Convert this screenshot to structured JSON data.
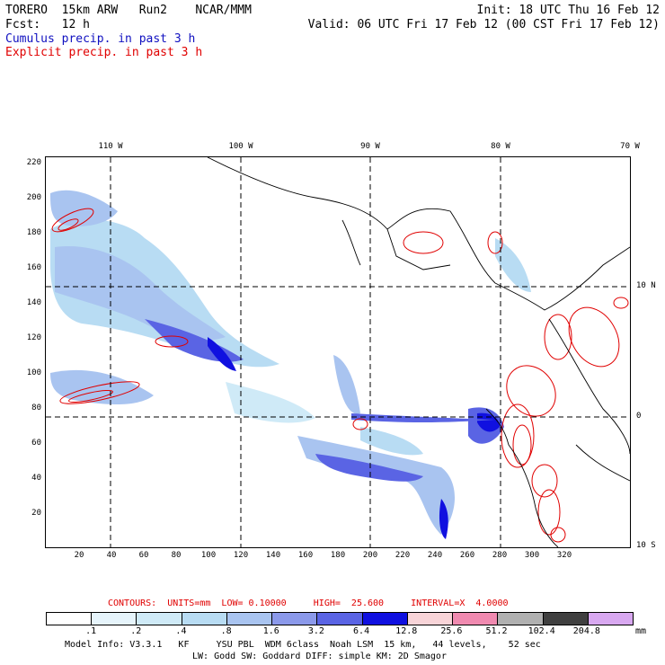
{
  "header": {
    "line1_left": "TORERO  15km ARW   Run2    NCAR/MMM",
    "line1_right": "Init: 18 UTC Thu 16 Feb 12",
    "line2_left": "Fcst:   12 h",
    "line2_right": "Valid: 06 UTC Fri 17 Feb 12 (00 CST Fri 17 Feb 12)",
    "legend_cumulus": "Cumulus precip. in past 3 h",
    "legend_explicit": "Explicit precip. in past 3 h"
  },
  "axes": {
    "top_lon_labels": [
      "110 W",
      "100 W",
      "90 W",
      "80 W",
      "70 W"
    ],
    "right_lat_labels": [
      "10 N",
      "0",
      "10 S"
    ],
    "left_y_ticks": [
      "220",
      "200",
      "180",
      "160",
      "140",
      "120",
      "100",
      "80",
      "60",
      "40",
      "20"
    ],
    "bottom_x_ticks": [
      "20",
      "40",
      "60",
      "80",
      "100",
      "120",
      "140",
      "160",
      "180",
      "200",
      "220",
      "240",
      "260",
      "280",
      "300",
      "320"
    ]
  },
  "contours": {
    "label": "CONTOURS:  UNITS=mm  LOW= 0.10000     HIGH=  25.600     INTERVAL=X  4.0000"
  },
  "colorbar": {
    "labels": [
      ".1",
      ".2",
      ".4",
      ".8",
      "1.6",
      "3.2",
      "6.4",
      "12.8",
      "25.6",
      "51.2",
      "102.4",
      "204.8"
    ],
    "units": "mm",
    "colors": [
      "#ffffff",
      "#e6f4fb",
      "#cfeaf7",
      "#b8dcf3",
      "#a9c4f0",
      "#8b99ea",
      "#5a64e4",
      "#1010e0",
      "#f8d4d8",
      "#f08ab0",
      "#b0b0b0",
      "#404040",
      "#d8a8f0"
    ]
  },
  "footer": {
    "line1": "Model Info: V3.3.1   KF     YSU PBL  WDM 6class  Noah LSM  15 km,   44 levels,    52 sec",
    "line2": "LW: Godd SW: Goddard DIFF: simple KM: 2D Smagor"
  }
}
